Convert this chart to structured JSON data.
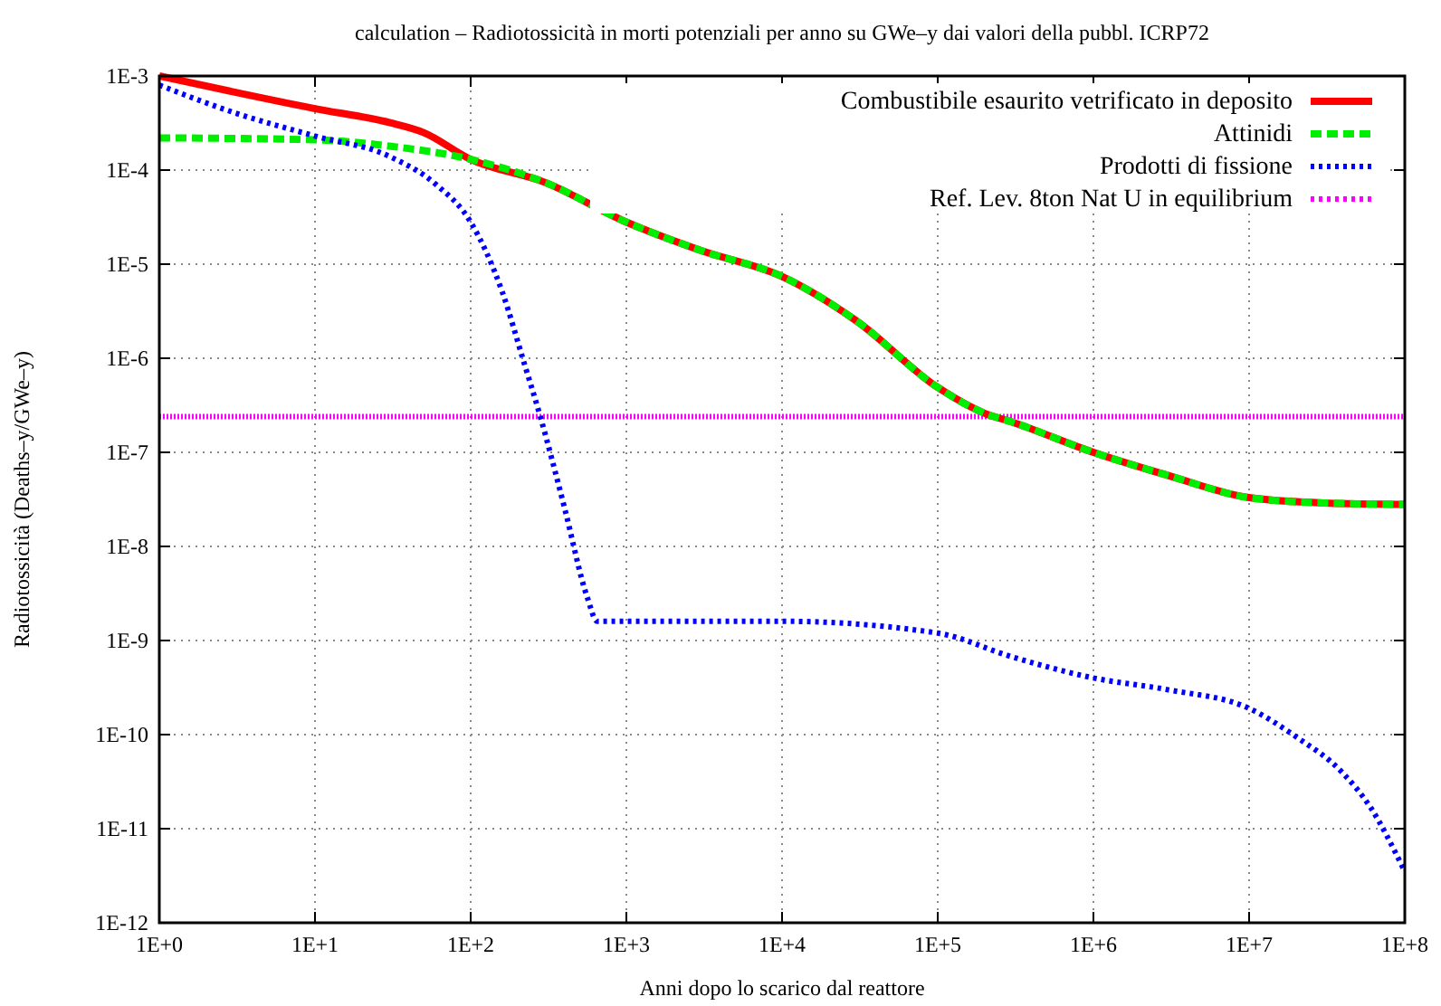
{
  "chart_data": {
    "type": "line",
    "title": "calculation – Radiotossicità in morti potenziali per anno su GWe–y dai valori della pubbl. ICRP72",
    "xlabel": "Anni dopo lo scarico dal reattore",
    "ylabel": "Radiotossicità (Deaths–y/GWe–y)",
    "log": "xy",
    "grid": true,
    "legend": "top right",
    "xlim": [
      1,
      100000000
    ],
    "xticks": [
      {
        "value": 1,
        "label": "1E+0"
      },
      {
        "value": 10,
        "label": "1E+1"
      },
      {
        "value": 100,
        "label": "1E+2"
      },
      {
        "value": 1000,
        "label": "1E+3"
      },
      {
        "value": 10000,
        "label": "1E+4"
      },
      {
        "value": 100000,
        "label": "1E+5"
      },
      {
        "value": 1000000,
        "label": "1E+6"
      },
      {
        "value": 10000000,
        "label": "1E+7"
      },
      {
        "value": 100000000,
        "label": "1E+8"
      }
    ],
    "ylim": [
      1e-12,
      0.001
    ],
    "yticks": [
      {
        "value": 1e-12,
        "label": "1E-12"
      },
      {
        "value": 1e-11,
        "label": "1E-11"
      },
      {
        "value": 1e-10,
        "label": "1E-10"
      },
      {
        "value": 1e-09,
        "label": "1E-9"
      },
      {
        "value": 1e-08,
        "label": "1E-8"
      },
      {
        "value": 1e-07,
        "label": "1E-7"
      },
      {
        "value": 1e-06,
        "label": "1E-6"
      },
      {
        "value": 1e-05,
        "label": "1E-5"
      },
      {
        "value": 0.0001,
        "label": "1E-4"
      },
      {
        "value": 0.001,
        "label": "1E-3"
      }
    ],
    "series": [
      {
        "name": "Combustibile esaurito vetrificato in deposito",
        "color": "#ff0000",
        "line_style": "solid",
        "x": [
          1,
          10,
          30,
          50,
          100,
          300,
          1000,
          3000,
          10000,
          30000,
          100000,
          200000,
          300000,
          1000000,
          3000000,
          10000000,
          30000000,
          100000000
        ],
        "values": [
          0.001,
          0.00045,
          0.00032,
          0.00025,
          0.00013,
          7.4e-05,
          2.8e-05,
          1.4e-05,
          7.4e-06,
          2.5e-06,
          4.9e-07,
          2.6e-07,
          2.1e-07,
          1e-07,
          5.7e-08,
          3.3e-08,
          2.9e-08,
          2.8e-08
        ]
      },
      {
        "name": "Attinidi",
        "color": "#00ee00",
        "line_style": "dashed",
        "x": [
          1,
          10,
          30,
          100,
          300,
          1000,
          3000,
          10000,
          30000,
          100000,
          200000,
          300000,
          1000000,
          3000000,
          10000000,
          30000000,
          100000000
        ],
        "values": [
          0.00022,
          0.00021,
          0.00018,
          0.00013,
          7.4e-05,
          2.8e-05,
          1.4e-05,
          7.4e-06,
          2.5e-06,
          4.9e-07,
          2.6e-07,
          2.1e-07,
          1e-07,
          5.7e-08,
          3.3e-08,
          2.9e-08,
          2.8e-08
        ]
      },
      {
        "name": "Prodotti di fissione",
        "color": "#0000ff",
        "line_style": "dotted",
        "x": [
          1,
          3,
          10,
          30,
          60,
          100,
          160,
          220,
          280,
          400,
          560,
          650,
          1000,
          10000,
          100000,
          300000,
          1000000,
          3000000,
          10000000,
          20000000,
          40000000,
          60000000,
          100000000
        ],
        "values": [
          0.0008,
          0.00041,
          0.00023,
          0.00014,
          7e-05,
          2.8e-05,
          5e-06,
          9e-07,
          2.4e-07,
          2.6e-08,
          2.9e-09,
          1.6e-09,
          1.6e-09,
          1.6e-09,
          1.2e-09,
          6.7e-10,
          4e-10,
          3e-10,
          1.9e-10,
          9.5e-11,
          3.9e-11,
          1.7e-11,
          3.5e-12
        ]
      }
    ],
    "ref_lines": [
      {
        "axis": "y",
        "value": 2.4e-07,
        "label": "Ref. Lev. 8ton Nat U in equilibrium",
        "color": "#ff00ff",
        "line_style": "dotted"
      }
    ]
  }
}
